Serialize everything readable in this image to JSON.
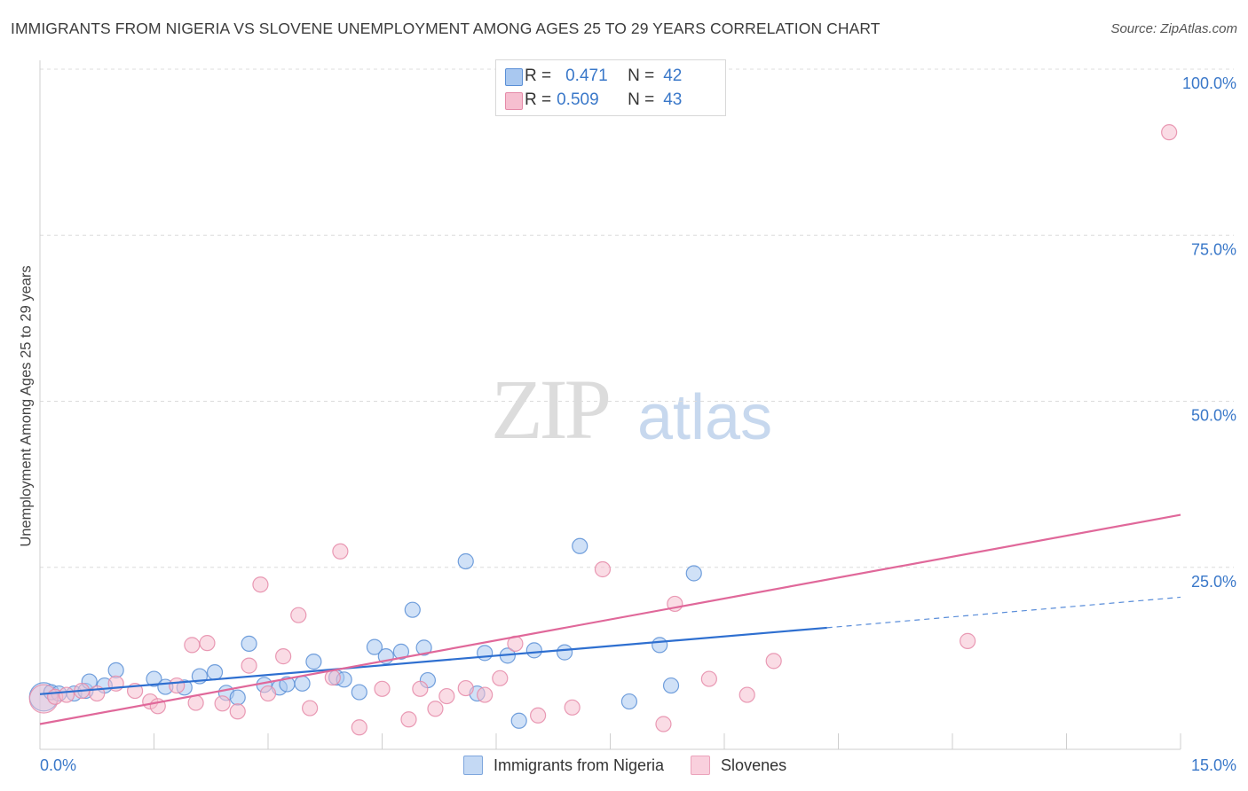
{
  "title": "IMMIGRANTS FROM NIGERIA VS SLOVENE UNEMPLOYMENT AMONG AGES 25 TO 29 YEARS CORRELATION CHART",
  "source": "Source: ZipAtlas.com",
  "watermark": {
    "zip": "ZIP",
    "atlas": "atlas"
  },
  "legend": {
    "r_label": "R =",
    "n_label": "N =",
    "rows": [
      {
        "r": "0.471",
        "n": "42"
      },
      {
        "r": "0.509",
        "n": "43"
      }
    ]
  },
  "colors": {
    "blue_fill": "#a9c8f0",
    "blue_stroke": "#5a8fd6",
    "blue_line": "#2e6fd0",
    "pink_fill": "#f6bfd0",
    "pink_stroke": "#e58aa8",
    "pink_line": "#e0689a",
    "tick_label": "#3a78c9",
    "grid": "#dcdcdc"
  },
  "chart_data": {
    "type": "scatter",
    "ylabel": "Unemployment Among Ages 25 to 29 years",
    "xlim": [
      0,
      15
    ],
    "ylim": [
      0,
      100
    ],
    "x_tick_labels": [
      {
        "value": 0,
        "label": "0.0%"
      },
      {
        "value": 15,
        "label": "15.0%"
      }
    ],
    "y_tick_labels": [
      {
        "value": 25,
        "label": "25.0%"
      },
      {
        "value": 50,
        "label": "50.0%"
      },
      {
        "value": 75,
        "label": "75.0%"
      },
      {
        "value": 100,
        "label": "100.0%"
      }
    ],
    "grid": true,
    "legend_position": "top-center",
    "series": [
      {
        "name": "Immigrants from Nigeria",
        "color": "blue",
        "trend": {
          "x0": 0,
          "y0": 5.9,
          "x1": 10.35,
          "y1": 15.9,
          "dashed_to_x": 15,
          "dashed_to_y": 20.5
        },
        "points": [
          [
            0.05,
            5.5
          ],
          [
            0.15,
            6.2
          ],
          [
            0.25,
            6.0
          ],
          [
            0.45,
            6.0
          ],
          [
            0.6,
            6.4
          ],
          [
            0.65,
            7.8
          ],
          [
            0.85,
            7.2
          ],
          [
            1.0,
            9.5
          ],
          [
            1.5,
            8.2
          ],
          [
            1.65,
            7.0
          ],
          [
            1.9,
            6.9
          ],
          [
            2.1,
            8.6
          ],
          [
            2.3,
            9.2
          ],
          [
            2.45,
            6.1
          ],
          [
            2.6,
            5.4
          ],
          [
            2.75,
            13.5
          ],
          [
            2.95,
            7.3
          ],
          [
            3.15,
            6.9
          ],
          [
            3.25,
            7.4
          ],
          [
            3.45,
            7.5
          ],
          [
            3.6,
            10.8
          ],
          [
            3.9,
            8.4
          ],
          [
            4.0,
            8.1
          ],
          [
            4.2,
            6.2
          ],
          [
            4.4,
            13.0
          ],
          [
            4.55,
            11.6
          ],
          [
            4.75,
            12.3
          ],
          [
            4.9,
            18.6
          ],
          [
            5.05,
            12.9
          ],
          [
            5.1,
            8.0
          ],
          [
            5.6,
            25.9
          ],
          [
            5.75,
            6.0
          ],
          [
            5.85,
            12.1
          ],
          [
            6.15,
            11.7
          ],
          [
            6.3,
            1.9
          ],
          [
            6.5,
            12.5
          ],
          [
            6.9,
            12.2
          ],
          [
            7.1,
            28.2
          ],
          [
            7.75,
            4.8
          ],
          [
            8.15,
            13.3
          ],
          [
            8.3,
            7.2
          ],
          [
            8.6,
            24.1
          ]
        ]
      },
      {
        "name": "Slovenes",
        "color": "pink",
        "trend": {
          "x0": 0,
          "y0": 1.4,
          "x1": 15,
          "y1": 32.9
        },
        "points": [
          [
            0.05,
            5.2
          ],
          [
            0.2,
            5.5
          ],
          [
            0.35,
            5.8
          ],
          [
            0.55,
            6.4
          ],
          [
            0.75,
            6.0
          ],
          [
            1.0,
            7.5
          ],
          [
            1.25,
            6.4
          ],
          [
            1.45,
            4.8
          ],
          [
            1.55,
            4.1
          ],
          [
            1.8,
            7.2
          ],
          [
            2.0,
            13.3
          ],
          [
            2.05,
            4.6
          ],
          [
            2.2,
            13.6
          ],
          [
            2.4,
            4.5
          ],
          [
            2.6,
            3.3
          ],
          [
            2.75,
            10.2
          ],
          [
            2.9,
            22.4
          ],
          [
            3.0,
            6.0
          ],
          [
            3.2,
            11.6
          ],
          [
            3.4,
            17.8
          ],
          [
            3.55,
            3.8
          ],
          [
            3.85,
            8.4
          ],
          [
            3.95,
            27.4
          ],
          [
            4.2,
            0.9
          ],
          [
            4.5,
            6.7
          ],
          [
            4.85,
            2.1
          ],
          [
            5.0,
            6.7
          ],
          [
            5.2,
            3.7
          ],
          [
            5.35,
            5.6
          ],
          [
            5.6,
            6.8
          ],
          [
            5.85,
            5.8
          ],
          [
            6.05,
            8.3
          ],
          [
            6.25,
            13.5
          ],
          [
            6.55,
            2.7
          ],
          [
            7.0,
            3.9
          ],
          [
            7.4,
            24.7
          ],
          [
            8.2,
            1.4
          ],
          [
            8.35,
            19.5
          ],
          [
            8.8,
            8.2
          ],
          [
            9.3,
            5.8
          ],
          [
            9.65,
            10.9
          ],
          [
            12.2,
            13.9
          ],
          [
            14.85,
            90.5
          ]
        ]
      }
    ]
  },
  "bottom_legend": [
    "Immigrants from Nigeria",
    "Slovenes"
  ]
}
